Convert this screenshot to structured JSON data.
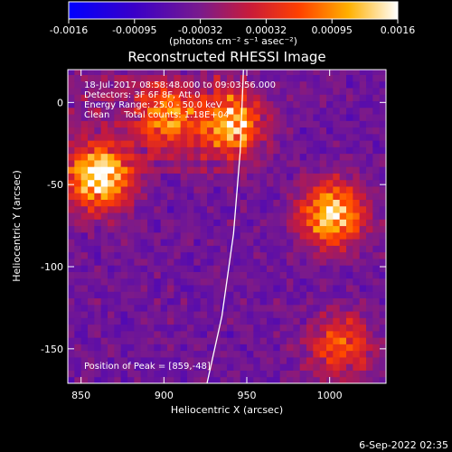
{
  "chart_data": {
    "type": "heatmap",
    "title": "Reconstructed RHESSI Image",
    "xlabel": "Heliocentric X (arcsec)",
    "ylabel": "Heliocentric Y (arcsec)",
    "xlim": [
      842,
      1034
    ],
    "ylim": [
      -171,
      20
    ],
    "x_ticks": [
      850,
      900,
      950,
      1000
    ],
    "y_ticks": [
      0,
      -50,
      -100,
      -150
    ],
    "colorbar": {
      "ticks": [
        "-0.0016",
        "-0.00095",
        "-0.00032",
        "0.00032",
        "0.00095",
        "0.0016"
      ],
      "range": [
        -0.0016,
        0.0016
      ],
      "units": "(photons cm⁻² s⁻¹ asec⁻²)",
      "colormap": "blue-purple-red-yellow-white"
    },
    "annotations": [
      "18-Jul-2017 08:58:48.000 to 09:03:56.000",
      "Detectors: 3F 6F 8F, Att 0",
      "Energy Range: 25.0 - 50.0 keV",
      "Clean     Total counts: 1.18E+04"
    ],
    "peak_label": "Position of Peak = [859,-48]",
    "peak": [
      859,
      -48
    ],
    "bright_sources": [
      {
        "x": 859,
        "y": -48,
        "relative_level": 1.0
      },
      {
        "x": 1000,
        "y": -70,
        "relative_level": 0.92
      },
      {
        "x": 940,
        "y": -15,
        "relative_level": 0.75
      },
      {
        "x": 900,
        "y": -10,
        "relative_level": 0.6
      },
      {
        "x": 1005,
        "y": -150,
        "relative_level": 0.55
      }
    ],
    "limb_curve": [
      [
        948,
        20
      ],
      [
        946,
        -30
      ],
      [
        942,
        -80
      ],
      [
        935,
        -130
      ],
      [
        926,
        -171
      ]
    ]
  },
  "footer": {
    "date": "6-Sep-2022 02:35"
  }
}
